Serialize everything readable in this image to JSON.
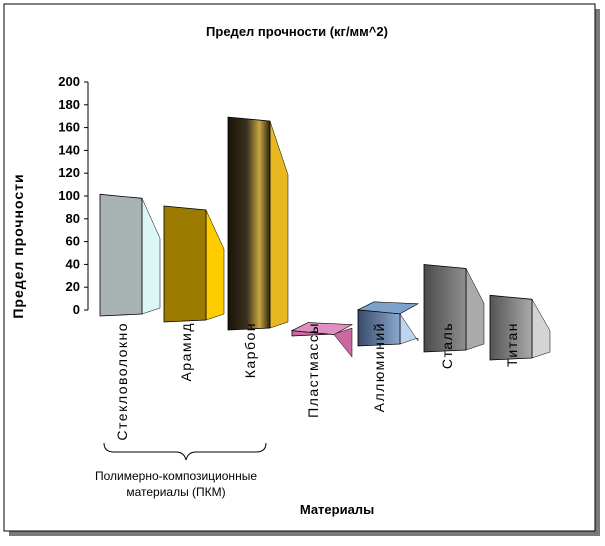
{
  "chart_data": {
    "type": "bar",
    "title": "Предел прочности (кг/мм^2)",
    "ylabel": "Предел прочности",
    "xlabel": "Материалы",
    "ylim": [
      0,
      200
    ],
    "yticks": [
      0,
      20,
      40,
      60,
      80,
      100,
      120,
      140,
      160,
      180,
      200
    ],
    "categories": [
      "Стекловолокно",
      "Арамид",
      "Карбон",
      "Пластмассы",
      "Аллюминий",
      "Сталь",
      "Титан"
    ],
    "values": [
      105,
      100,
      185,
      3,
      30,
      75,
      55
    ],
    "group": {
      "label_line1": "Полимерно-композиционные",
      "label_line2": "материалы (ПКМ)",
      "covers": [
        "Стекловолокно",
        "Арамид",
        "Карбон"
      ]
    },
    "colors": {
      "front": [
        "#a9b3b3",
        "#9b7c00",
        "#2a2418",
        "#c86aa0",
        "#5a7090",
        "#6e6e6e",
        "#7c7c7c"
      ],
      "side": [
        "#dcf6f6",
        "#ffcc00",
        "#e8b820",
        "#c86aa0",
        "#bcd4f0",
        "#aaaaaa",
        "#d4d4d4"
      ],
      "top": [
        "#cfd6d6",
        "#c8a000",
        "#555040",
        "#e090c0",
        "#7da3cc",
        "#888888",
        "#999999"
      ]
    }
  }
}
